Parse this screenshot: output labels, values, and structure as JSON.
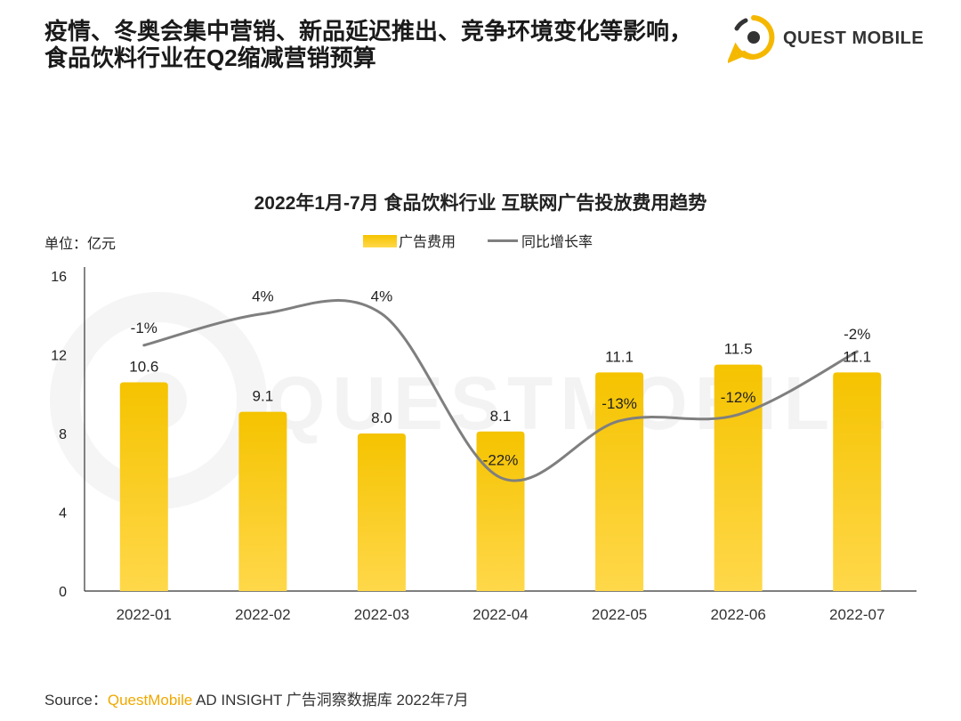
{
  "headline": {
    "line1": "疫情、冬奥会集中营销、新品延迟推出、竞争环境变化等影响，",
    "line2": "食品饮料行业在Q2缩减营销预算"
  },
  "logo": {
    "text": "QUEST MOBILE",
    "icon": "questmobile-logo-icon"
  },
  "watermark": "QUESTMOBILE",
  "colors": {
    "bar_top": "#f5c300",
    "bar_bottom": "#ffd84a",
    "line": "#7f7f7f",
    "brand": "#f0a800"
  },
  "chart_data": {
    "type": "bar",
    "title": "2022年1月-7月 食品饮料行业 互联网广告投放费用趋势",
    "unit_label": "单位：亿元",
    "categories": [
      "2022-01",
      "2022-02",
      "2022-03",
      "2022-04",
      "2022-05",
      "2022-06",
      "2022-07"
    ],
    "series": [
      {
        "name": "广告费用",
        "type": "bar",
        "values": [
          10.6,
          9.1,
          8.0,
          8.1,
          11.1,
          11.5,
          11.1
        ],
        "labels": [
          "10.6",
          "9.1",
          "8.0",
          "8.1",
          "11.1",
          "11.5",
          "11.1"
        ]
      },
      {
        "name": "同比增长率",
        "type": "line",
        "axis": "secondary",
        "values": [
          -1,
          4,
          4,
          -22,
          -13,
          -12,
          -2
        ],
        "labels": [
          "-1%",
          "4%",
          "4%",
          "-22%",
          "-13%",
          "-12%",
          "-2%"
        ]
      }
    ],
    "y_ticks": [
      "0",
      "4",
      "8",
      "12",
      "16"
    ],
    "ylim": [
      0,
      16
    ],
    "y2lim": [
      -40,
      10
    ],
    "legend": [
      "广告费用",
      "同比增长率"
    ],
    "legend_position": "top-center",
    "grid": false
  },
  "source": {
    "prefix": "Source：",
    "brand": "QuestMobile",
    "rest": " AD INSIGHT 广告洞察数据库 2022年7月"
  }
}
